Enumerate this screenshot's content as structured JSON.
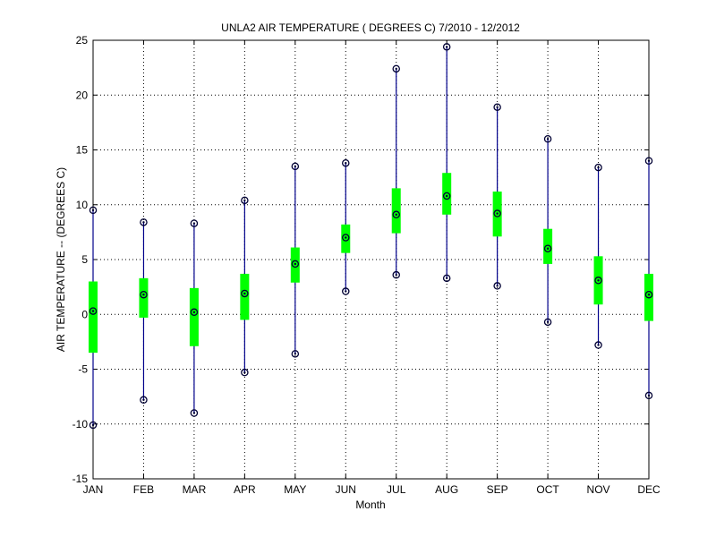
{
  "chart_data": {
    "type": "boxplot",
    "title": "UNLA2  AIR TEMPERATURE ( DEGREES C) 7/2010 - 12/2012",
    "xlabel": "Month",
    "ylabel": "AIR TEMPERATURE -- (DEGREES C)",
    "ylim": [
      -15,
      25
    ],
    "yticks": [
      -15,
      -10,
      -5,
      0,
      5,
      10,
      15,
      20,
      25
    ],
    "grid": true,
    "categories": [
      "JAN",
      "FEB",
      "MAR",
      "APR",
      "MAY",
      "JUN",
      "JUL",
      "AUG",
      "SEP",
      "OCT",
      "NOV",
      "DEC"
    ],
    "min": [
      -10.1,
      -7.8,
      -9.0,
      -5.3,
      -3.6,
      2.1,
      3.6,
      3.3,
      2.6,
      -0.7,
      -2.8,
      -7.4
    ],
    "q1": [
      -3.5,
      -0.3,
      -2.9,
      -0.5,
      2.9,
      5.6,
      7.4,
      9.1,
      7.1,
      4.6,
      0.9,
      -0.6
    ],
    "median": [
      0.3,
      1.8,
      0.2,
      1.9,
      4.6,
      7.0,
      9.1,
      10.8,
      9.2,
      6.0,
      3.1,
      1.8
    ],
    "q3": [
      3.0,
      3.3,
      2.4,
      3.7,
      6.1,
      8.2,
      11.5,
      12.9,
      11.2,
      7.8,
      5.3,
      3.7
    ],
    "max": [
      9.5,
      8.4,
      8.3,
      10.4,
      13.5,
      13.8,
      22.4,
      24.4,
      18.9,
      16.0,
      13.4,
      14.0
    ],
    "colors": {
      "whisker": "#00008b",
      "box": "#00ff00",
      "marker": "#000033",
      "grid": "#000000",
      "axis": "#000000"
    }
  }
}
